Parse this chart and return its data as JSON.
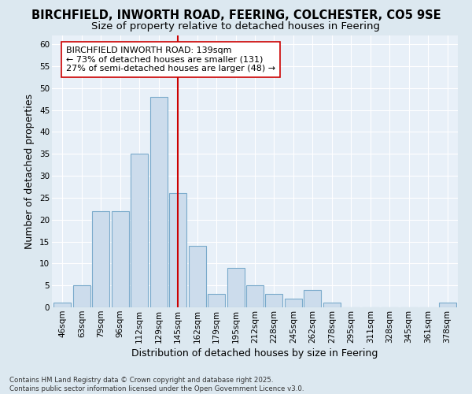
{
  "title_line1": "BIRCHFIELD, INWORTH ROAD, FEERING, COLCHESTER, CO5 9SE",
  "title_line2": "Size of property relative to detached houses in Feering",
  "xlabel": "Distribution of detached houses by size in Feering",
  "ylabel": "Number of detached properties",
  "footnote": "Contains HM Land Registry data © Crown copyright and database right 2025.\nContains public sector information licensed under the Open Government Licence v3.0.",
  "bar_labels": [
    "46sqm",
    "63sqm",
    "79sqm",
    "96sqm",
    "112sqm",
    "129sqm",
    "145sqm",
    "162sqm",
    "179sqm",
    "195sqm",
    "212sqm",
    "228sqm",
    "245sqm",
    "262sqm",
    "278sqm",
    "295sqm",
    "311sqm",
    "328sqm",
    "345sqm",
    "361sqm",
    "378sqm"
  ],
  "bar_values": [
    1,
    5,
    22,
    22,
    35,
    48,
    26,
    14,
    3,
    9,
    5,
    3,
    2,
    4,
    1,
    0,
    0,
    0,
    0,
    0,
    1
  ],
  "bar_color": "#ccdcec",
  "bar_edge_color": "#7aaacb",
  "ylim": [
    0,
    62
  ],
  "yticks": [
    0,
    5,
    10,
    15,
    20,
    25,
    30,
    35,
    40,
    45,
    50,
    55,
    60
  ],
  "vline_color": "#cc0000",
  "vline_pos": 6.0,
  "annotation_text": "BIRCHFIELD INWORTH ROAD: 139sqm\n← 73% of detached houses are smaller (131)\n27% of semi-detached houses are larger (48) →",
  "annotation_box_facecolor": "#ffffff",
  "annotation_box_edgecolor": "#cc0000",
  "background_color": "#dce8f0",
  "plot_bg_color": "#e8f0f8",
  "grid_color": "#ffffff",
  "title_fontsize": 10.5,
  "subtitle_fontsize": 9.5,
  "axis_label_fontsize": 9,
  "tick_fontsize": 7.5,
  "annotation_fontsize": 8
}
